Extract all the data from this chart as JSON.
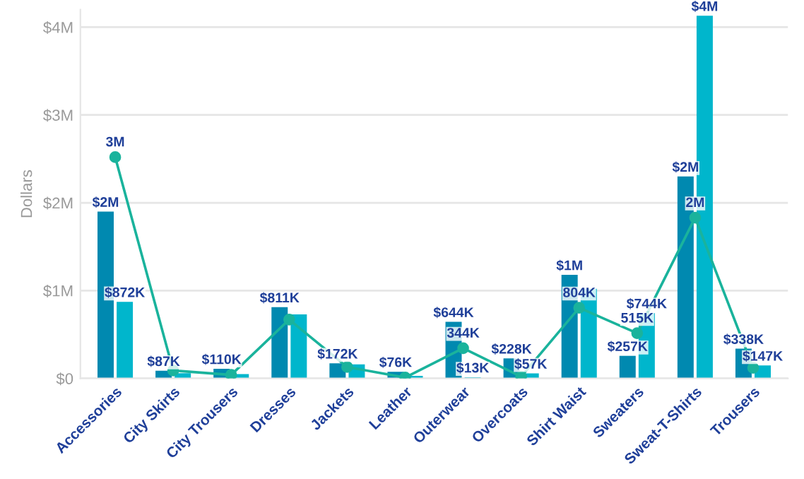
{
  "chart_data": {
    "type": "bar",
    "ylabel": "Dollars",
    "categories": [
      "Accessories",
      "City Skirts",
      "City Trousers",
      "Dresses",
      "Jackets",
      "Leather",
      "Outerwear",
      "Overcoats",
      "Shirt Waist",
      "Sweaters",
      "Sweat-T-Shirts",
      "Trousers"
    ],
    "series": [
      {
        "color": "#0089b0",
        "values": [
          1900000,
          87000,
          110000,
          811000,
          172000,
          76000,
          644000,
          228000,
          1180000,
          257000,
          2300000,
          338000
        ],
        "value_labels": [
          "$2M",
          "$87K",
          "$110K",
          "$811K",
          "$172K",
          "$76K",
          "$644K",
          "$228K",
          "$1M",
          "$257K",
          "$2M",
          "$338K"
        ]
      },
      {
        "color": "#00b6cc",
        "values": [
          872000,
          60000,
          50000,
          730000,
          160000,
          30000,
          13000,
          57000,
          1020000,
          744000,
          4130000,
          147000
        ],
        "value_labels": [
          "$872K",
          null,
          null,
          null,
          null,
          null,
          "$13K",
          "$57K",
          null,
          "$744K",
          "$4M",
          "$147K"
        ]
      },
      {
        "type": "line",
        "color": "#1ab39c",
        "values": [
          2520000,
          90000,
          40000,
          670000,
          130000,
          10000,
          344000,
          20000,
          804000,
          515000,
          1830000,
          120000
        ],
        "value_labels": [
          "3M",
          null,
          null,
          null,
          null,
          null,
          "344K",
          null,
          "804K",
          "515K",
          "2M",
          null
        ]
      }
    ],
    "ylim": [
      0,
      4200000
    ],
    "yticks": [
      {
        "value": 0,
        "label": "$0"
      },
      {
        "value": 1000000,
        "label": "$1M"
      },
      {
        "value": 2000000,
        "label": "$2M"
      },
      {
        "value": 3000000,
        "label": "$3M"
      },
      {
        "value": 4000000,
        "label": "$4M"
      }
    ],
    "grid": "y",
    "marker": "circle",
    "legend": false
  }
}
